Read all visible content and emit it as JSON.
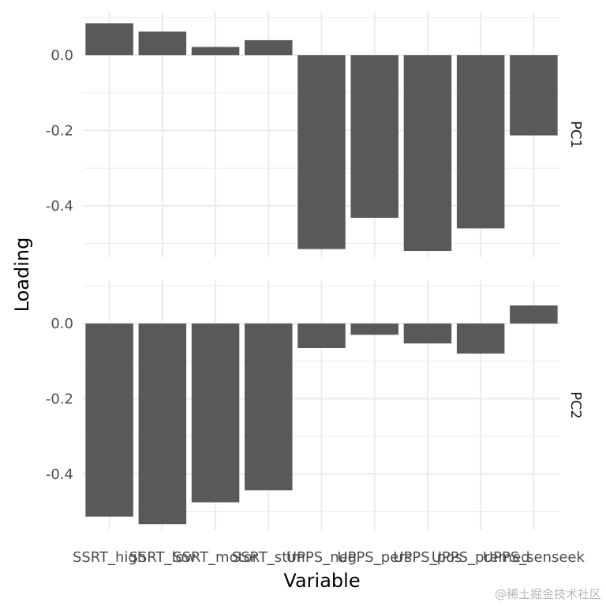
{
  "chart_data": {
    "type": "bar",
    "xlabel": "Variable",
    "ylabel": "Loading",
    "categories": [
      "SSRT_high",
      "SSRT_low",
      "SSRT_motor",
      "SSRT_stim",
      "UPPS_neg",
      "UPPS_pers",
      "UPPS_pos",
      "UPPS_premed",
      "UPPS_senseek"
    ],
    "x_tick_labels_visible": [
      "SSRT_high",
      "SSRT_low",
      "SSRT_motor",
      "SSRT_stim",
      "UPPS_neg",
      "UPPS_pers",
      "UPPS_pos",
      "UPPS_premed",
      "UPPS_senseek"
    ],
    "facets": [
      {
        "name": "PC1",
        "values": [
          0.085,
          0.063,
          0.022,
          0.04,
          -0.515,
          -0.432,
          -0.52,
          -0.46,
          -0.213
        ]
      },
      {
        "name": "PC2",
        "values": [
          -0.513,
          -0.533,
          -0.475,
          -0.443,
          -0.065,
          -0.03,
          -0.053,
          -0.08,
          0.048
        ]
      }
    ],
    "y_ticks": [
      0.0,
      -0.2,
      -0.4
    ],
    "y_tick_labels": [
      "0.0",
      "-0.2",
      "-0.4"
    ],
    "ylim": [
      -0.54,
      0.1
    ],
    "grid": true,
    "bar_color": "#595959",
    "grid_color": "#ebebeb"
  },
  "watermark": "@稀土掘金技术社区"
}
